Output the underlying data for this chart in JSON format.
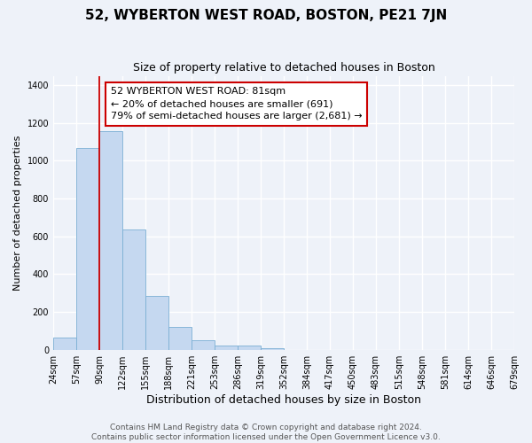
{
  "title": "52, WYBERTON WEST ROAD, BOSTON, PE21 7JN",
  "subtitle": "Size of property relative to detached houses in Boston",
  "xlabel": "Distribution of detached houses by size in Boston",
  "ylabel": "Number of detached properties",
  "bin_labels": [
    "24sqm",
    "57sqm",
    "90sqm",
    "122sqm",
    "155sqm",
    "188sqm",
    "221sqm",
    "253sqm",
    "286sqm",
    "319sqm",
    "352sqm",
    "384sqm",
    "417sqm",
    "450sqm",
    "483sqm",
    "515sqm",
    "548sqm",
    "581sqm",
    "614sqm",
    "646sqm",
    "679sqm"
  ],
  "bar_values": [
    65,
    1070,
    1155,
    635,
    285,
    120,
    48,
    20,
    20,
    10,
    0,
    0,
    0,
    0,
    0,
    0,
    0,
    0,
    0,
    0
  ],
  "bar_color": "#c5d8f0",
  "bar_edge_color": "#7bafd4",
  "annotation_text_line1": "52 WYBERTON WEST ROAD: 81sqm",
  "annotation_text_line2": "← 20% of detached houses are smaller (691)",
  "annotation_text_line3": "79% of semi-detached houses are larger (2,681) →",
  "red_line_color": "#cc0000",
  "footer_line1": "Contains HM Land Registry data © Crown copyright and database right 2024.",
  "footer_line2": "Contains public sector information licensed under the Open Government Licence v3.0.",
  "ylim": [
    0,
    1450
  ],
  "yticks": [
    0,
    200,
    400,
    600,
    800,
    1000,
    1200,
    1400
  ],
  "background_color": "#eef2f9",
  "grid_color": "#ffffff",
  "title_fontsize": 11,
  "subtitle_fontsize": 9,
  "xlabel_fontsize": 9,
  "ylabel_fontsize": 8,
  "tick_fontsize": 7,
  "annotation_fontsize": 8,
  "footer_fontsize": 6.5
}
